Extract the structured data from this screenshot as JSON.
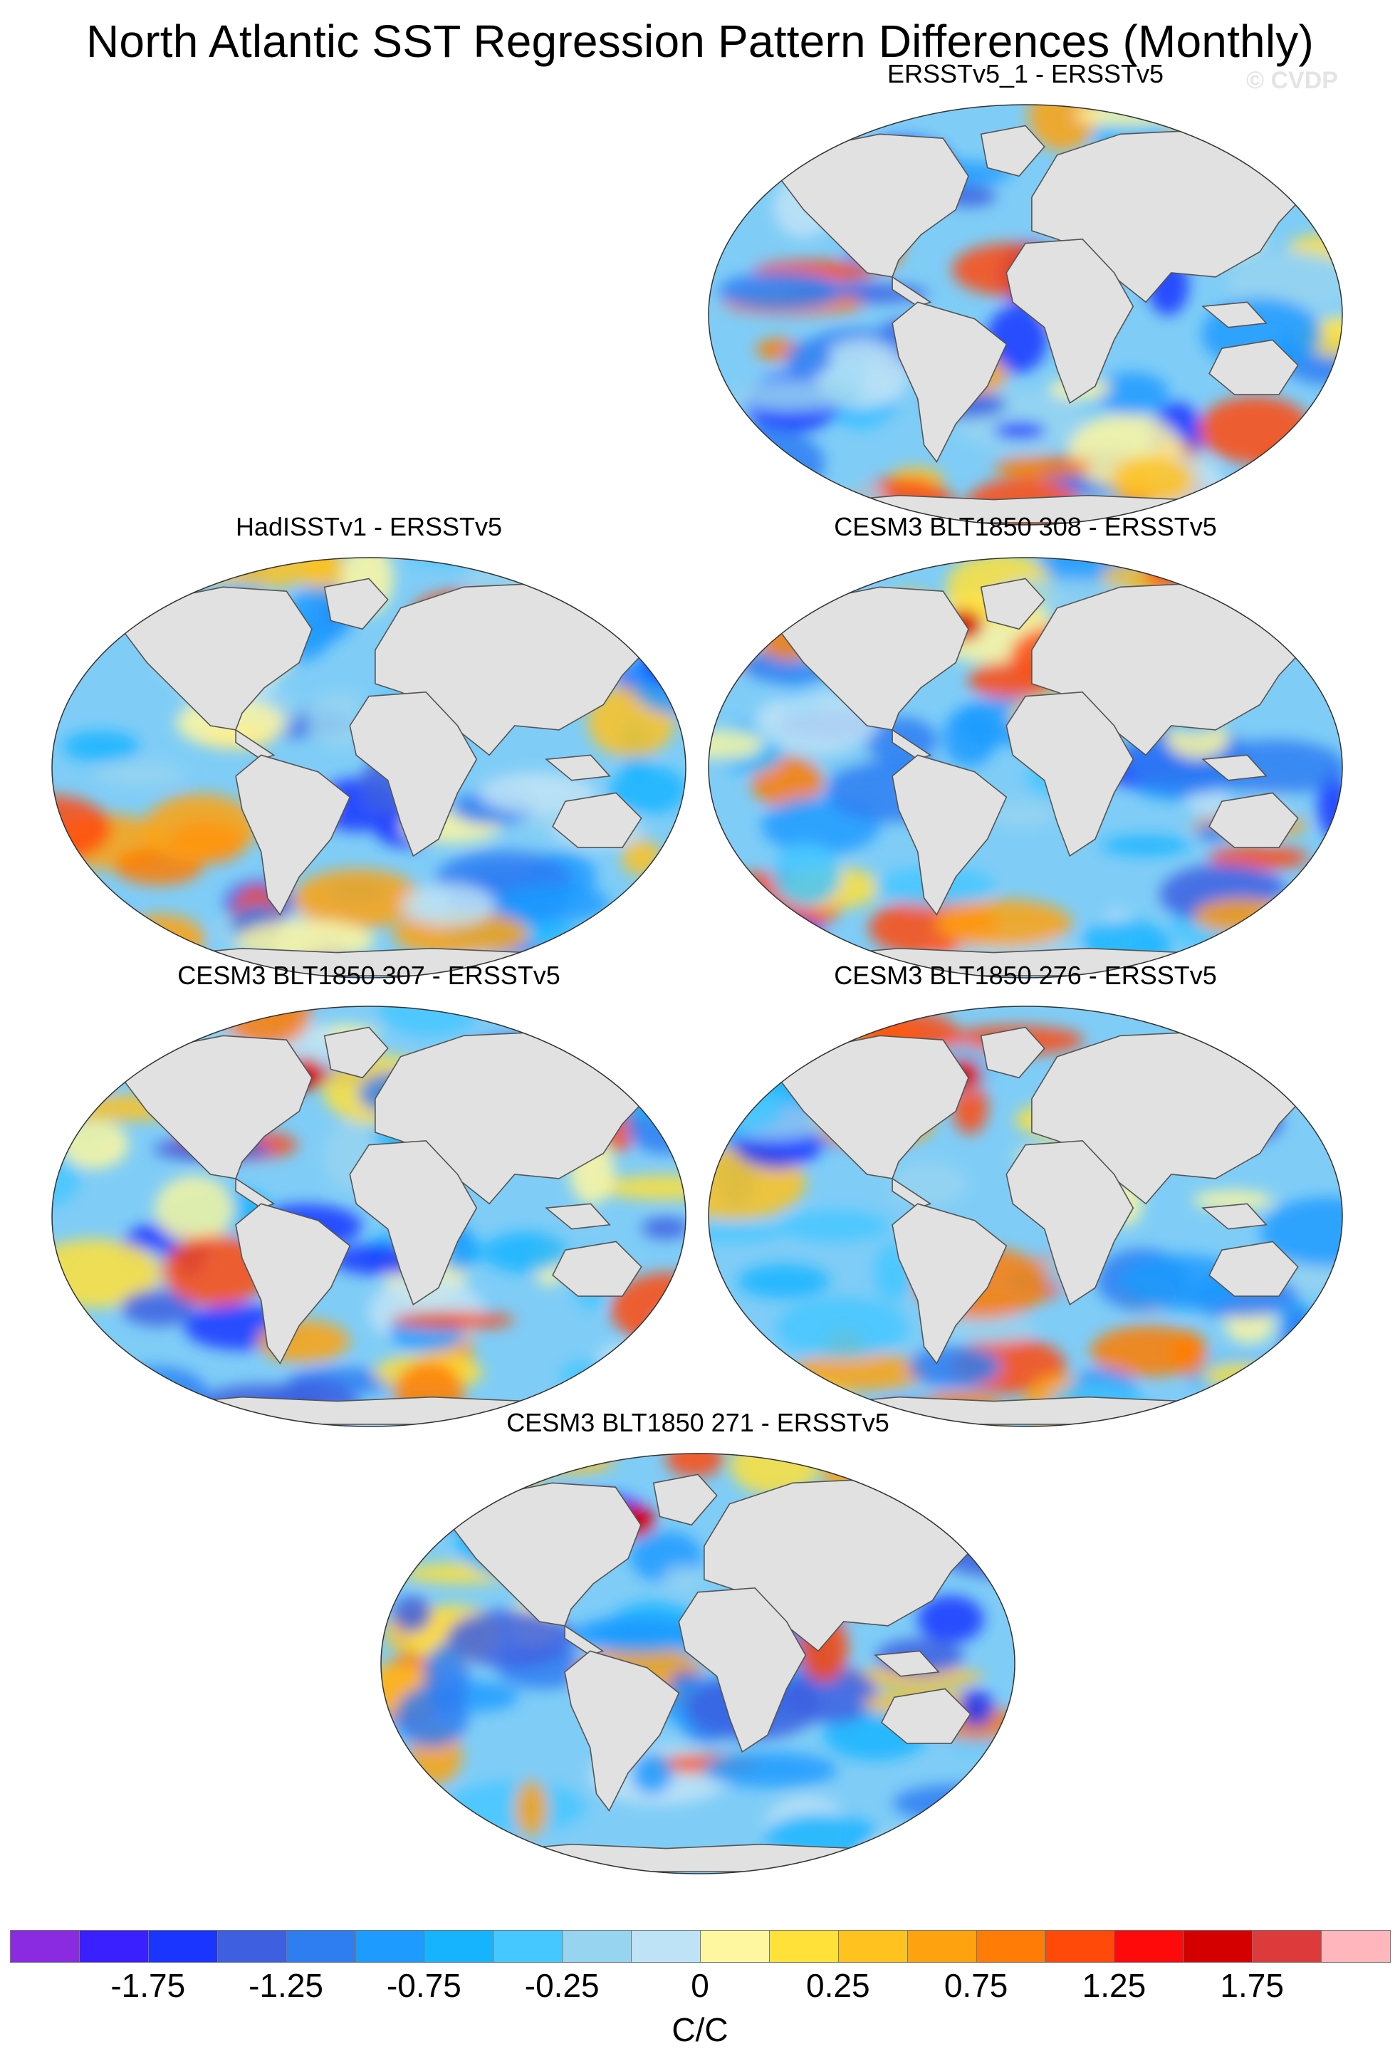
{
  "title": "North Atlantic SST Regression Pattern Differences (Monthly)",
  "watermark": "© CVDP",
  "panels": [
    {
      "title": "ERSSTv5_1 - ERSSTv5"
    },
    {
      "title": "HadISSTv1 - ERSSTv5"
    },
    {
      "title": "CESM3 BLT1850 308 - ERSSTv5"
    },
    {
      "title": "CESM3 BLT1850 307 - ERSSTv5"
    },
    {
      "title": "CESM3 BLT1850 276 - ERSSTv5"
    },
    {
      "title": "CESM3 BLT1850 271 - ERSSTv5"
    }
  ],
  "map_style": {
    "projection": "Robinson-like global",
    "land_color": "#e1e1e1",
    "coast_color": "#555555",
    "ocean_base_color": "#7fcdf7"
  },
  "colorbar": {
    "units": "C/C",
    "colors": [
      "#8a2be2",
      "#3a1fff",
      "#1a35ff",
      "#3d5fe0",
      "#2e7ef2",
      "#1d9bff",
      "#16b4ff",
      "#45c7ff",
      "#96d4f0",
      "#bfe3f6",
      "#fff7a0",
      "#ffe13a",
      "#ffc21f",
      "#ffa20f",
      "#ff7d06",
      "#ff4a0a",
      "#ff0a0a",
      "#d40000",
      "#dd3b3b",
      "#ffb7bd"
    ],
    "tick_labels": [
      "-1.75",
      "-1.25",
      "-0.75",
      "-0.25",
      "0",
      "0.25",
      "0.75",
      "1.25",
      "1.75"
    ]
  }
}
